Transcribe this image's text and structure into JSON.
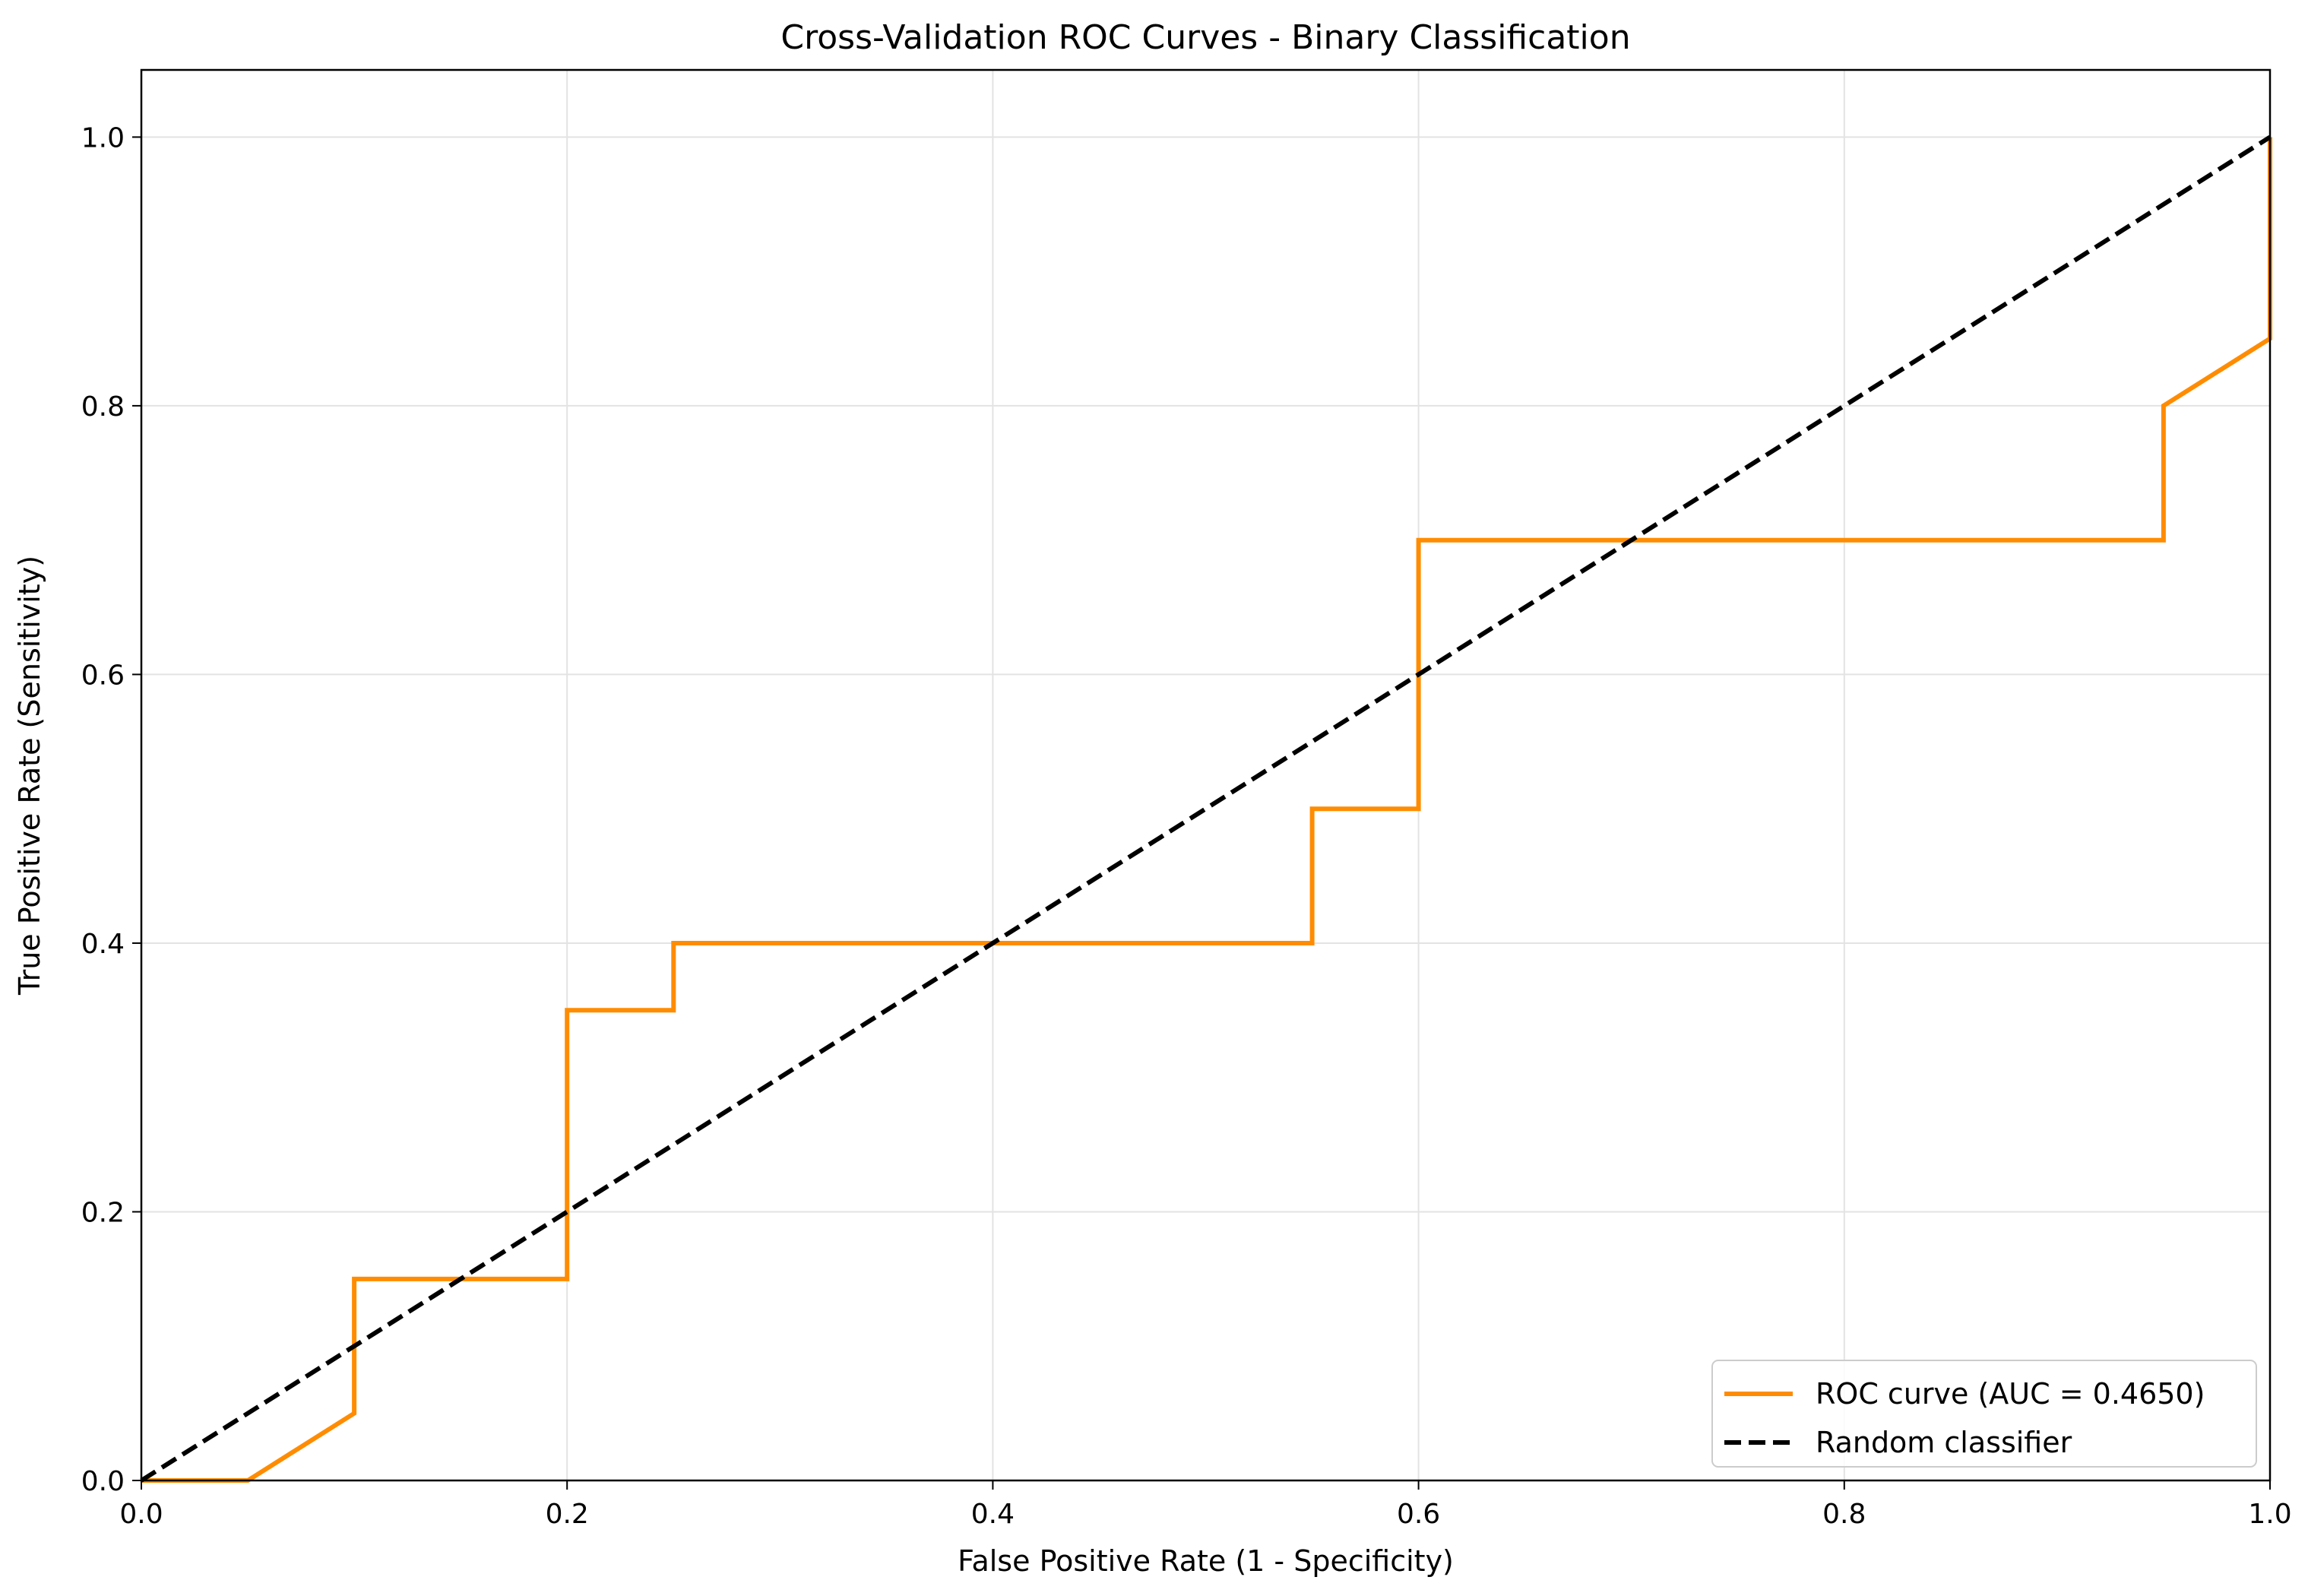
{
  "chart_data": {
    "type": "line",
    "title": "Cross-Validation ROC Curves - Binary Classification",
    "xlabel": "False Positive Rate (1 - Specificity)",
    "ylabel": "True Positive Rate (Sensitivity)",
    "xlim": [
      0.0,
      1.0
    ],
    "ylim": [
      0.0,
      1.05
    ],
    "xticks": [
      "0.0",
      "0.2",
      "0.4",
      "0.6",
      "0.8",
      "1.0"
    ],
    "yticks": [
      "0.0",
      "0.2",
      "0.4",
      "0.6",
      "0.8",
      "1.0"
    ],
    "grid": true,
    "legend_position": "lower-right",
    "series": [
      {
        "name": "ROC curve (AUC = 0.4650)",
        "color": "#ff8c00",
        "style": "solid",
        "points": [
          [
            0.0,
            0.0
          ],
          [
            0.05,
            0.0
          ],
          [
            0.1,
            0.05
          ],
          [
            0.1,
            0.15
          ],
          [
            0.2,
            0.15
          ],
          [
            0.2,
            0.35
          ],
          [
            0.25,
            0.35
          ],
          [
            0.25,
            0.4
          ],
          [
            0.55,
            0.4
          ],
          [
            0.55,
            0.5
          ],
          [
            0.6,
            0.5
          ],
          [
            0.6,
            0.7
          ],
          [
            0.95,
            0.7
          ],
          [
            0.95,
            0.8
          ],
          [
            1.0,
            0.85
          ],
          [
            1.0,
            1.0
          ]
        ]
      },
      {
        "name": "Random classifier",
        "color": "#000000",
        "style": "dashed",
        "points": [
          [
            0.0,
            0.0
          ],
          [
            1.0,
            1.0
          ]
        ]
      }
    ]
  }
}
